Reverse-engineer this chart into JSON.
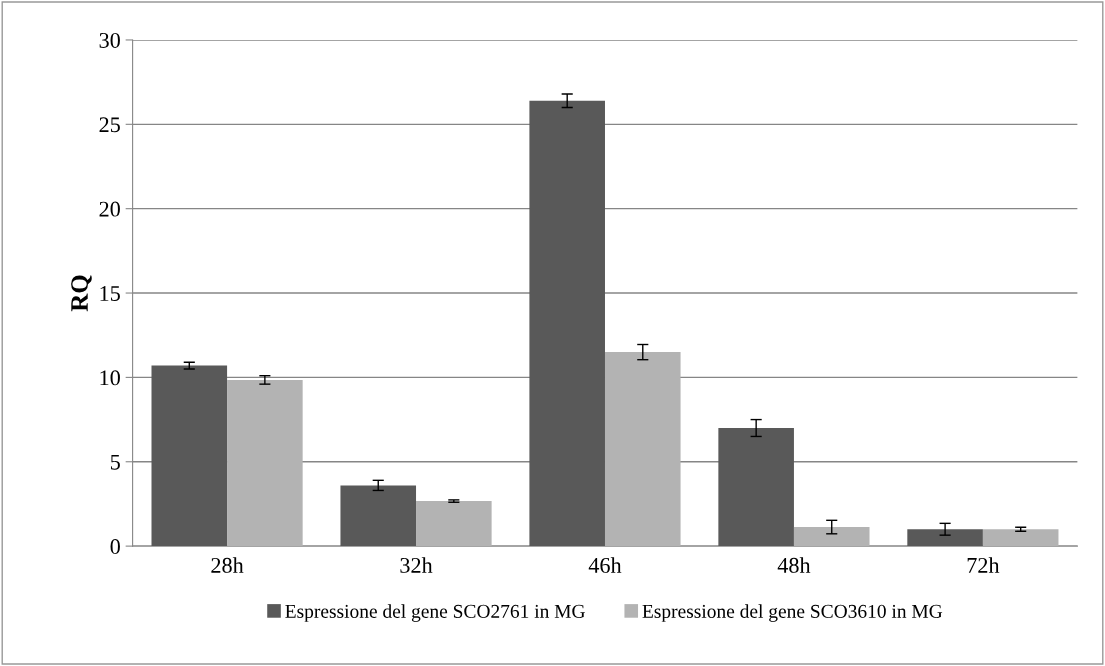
{
  "chart_data": {
    "type": "bar",
    "ylabel": "RQ",
    "categories": [
      "28h",
      "32h",
      "46h",
      "48h",
      "72h"
    ],
    "series": [
      {
        "name": "Espressione del gene SCO2761 in MG",
        "color": "#595959",
        "values": [
          10.7,
          3.6,
          26.4,
          7.0,
          1.0
        ],
        "errors": [
          0.2,
          0.3,
          0.4,
          0.5,
          0.35
        ]
      },
      {
        "name": "Espressione del gene SCO3610 in MG",
        "color": "#b3b3b3",
        "values": [
          9.85,
          2.67,
          11.5,
          1.13,
          1.0
        ],
        "errors": [
          0.25,
          0.07,
          0.45,
          0.4,
          0.12
        ]
      }
    ],
    "ylim": [
      0,
      30
    ],
    "yticks": [
      0,
      5,
      10,
      15,
      20,
      25,
      30
    ],
    "grid": "y",
    "legend": "bottom"
  }
}
